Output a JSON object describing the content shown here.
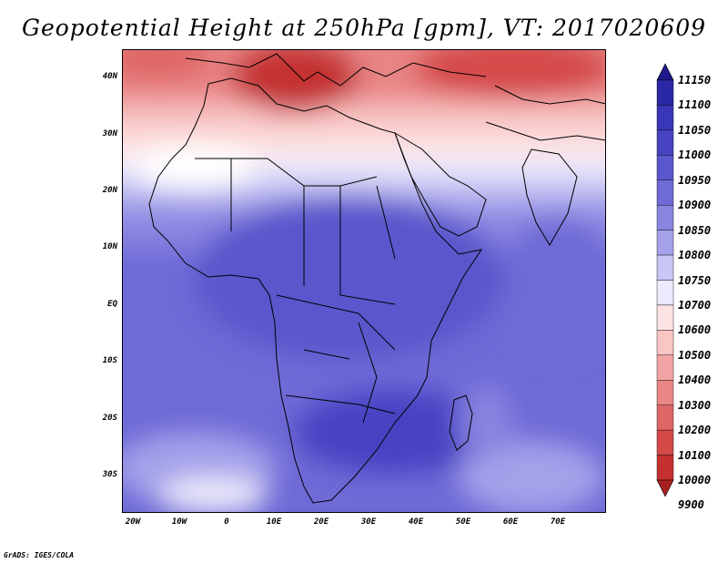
{
  "title": "Geopotential Height at 250hPa [gpm], VT: 2017020609",
  "map": {
    "lat_labels": [
      "40N",
      "30N",
      "20N",
      "10N",
      "EQ",
      "10S",
      "20S",
      "30S"
    ],
    "lon_labels": [
      "20W",
      "10W",
      "0",
      "10E",
      "20E",
      "30E",
      "40E",
      "50E",
      "60E",
      "70E"
    ],
    "lon_range": [
      -22,
      80
    ],
    "lat_range": [
      -37,
      45
    ]
  },
  "legend": {
    "levels": [
      "11150",
      "11100",
      "11050",
      "11000",
      "10950",
      "10900",
      "10850",
      "10800",
      "10750",
      "10700",
      "10600",
      "10500",
      "10400",
      "10300",
      "10200",
      "10100",
      "10000",
      "9900"
    ],
    "colors": [
      "#1e1a8c",
      "#2b28a8",
      "#3a36b8",
      "#4742c2",
      "#5a56cc",
      "#6e6ad6",
      "#8884e0",
      "#a4a1ea",
      "#c8c6f4",
      "#eceafc",
      "#fde3e3",
      "#f9c4c4",
      "#f2a3a3",
      "#e98585",
      "#df6666",
      "#d54848",
      "#c53030",
      "#a81f1f"
    ]
  },
  "credit": "GrADS: IGES/COLA"
}
